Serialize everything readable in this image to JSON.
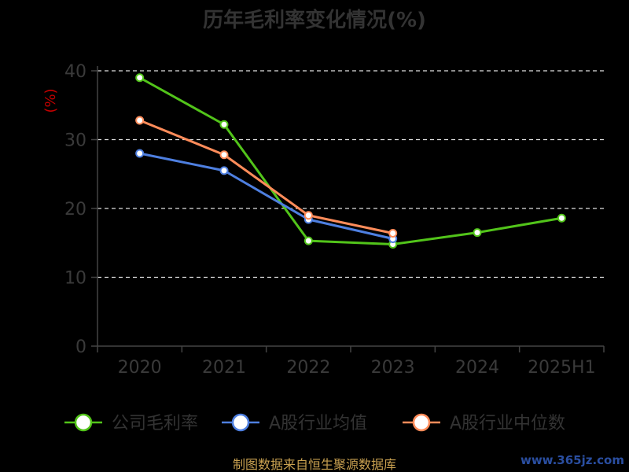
{
  "chart_data": {
    "type": "line",
    "title": "历年毛利率变化情况(%)",
    "ylabel": "(%)",
    "categories": [
      "2020",
      "2021",
      "2022",
      "2023",
      "2024",
      "2025H1"
    ],
    "yticks": [
      0,
      10,
      20,
      30,
      40
    ],
    "ylim": [
      0,
      40
    ],
    "grid": true,
    "legend_position": "bottom",
    "series": [
      {
        "name": "公司毛利率",
        "color": "#52c41a",
        "values": [
          39.0,
          32.2,
          15.3,
          14.8,
          16.5,
          18.6
        ]
      },
      {
        "name": "A股行业均值",
        "color": "#4e7fe0",
        "values": [
          28.0,
          25.5,
          18.4,
          15.6,
          null,
          null
        ]
      },
      {
        "name": "A股行业中位数",
        "color": "#ff8c5a",
        "values": [
          32.8,
          27.8,
          19.0,
          16.4,
          null,
          null
        ]
      }
    ]
  },
  "footer": {
    "source": "制图数据来自恒生聚源数据库",
    "watermark": "www.365jz.com"
  }
}
